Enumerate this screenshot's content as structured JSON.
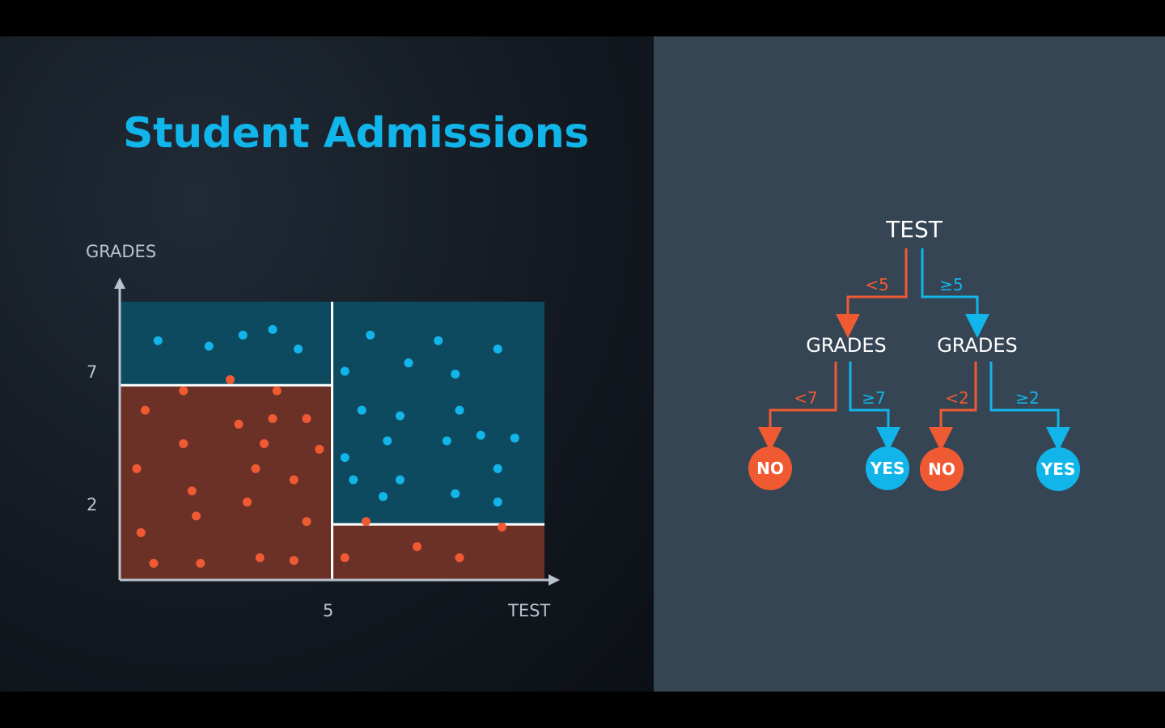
{
  "title": "Student Admissions",
  "colors": {
    "accent": "#12b5ea",
    "reject": "#f05a32",
    "accept": "#12b5ea",
    "accept_region": "#0e4a5f",
    "reject_region": "#6b3127",
    "panel": "#354554"
  },
  "chart_data": {
    "type": "scatter",
    "xlabel": "TEST",
    "ylabel": "GRADES",
    "xlim": [
      0,
      10
    ],
    "ylim": [
      0,
      10
    ],
    "x_ticks": [
      {
        "value": 5,
        "label": "5"
      }
    ],
    "y_ticks": [
      {
        "value": 7,
        "label": "7"
      },
      {
        "value": 2,
        "label": "2"
      }
    ],
    "regions": [
      {
        "label_class": "accept",
        "x": [
          0,
          5
        ],
        "y": [
          7,
          10
        ]
      },
      {
        "label_class": "reject",
        "x": [
          0,
          5
        ],
        "y": [
          0,
          7
        ]
      },
      {
        "label_class": "accept",
        "x": [
          5,
          10
        ],
        "y": [
          2,
          10
        ]
      },
      {
        "label_class": "reject",
        "x": [
          5,
          10
        ],
        "y": [
          0,
          2
        ]
      }
    ],
    "series": [
      {
        "class": "accepted",
        "points": [
          [
            0.9,
            8.6
          ],
          [
            2.1,
            8.4
          ],
          [
            2.9,
            8.8
          ],
          [
            3.6,
            9.0
          ],
          [
            4.2,
            8.3
          ],
          [
            5.9,
            8.8
          ],
          [
            7.5,
            8.6
          ],
          [
            8.9,
            8.3
          ],
          [
            5.3,
            7.5
          ],
          [
            6.8,
            7.8
          ],
          [
            7.9,
            7.4
          ],
          [
            5.7,
            6.1
          ],
          [
            6.6,
            5.9
          ],
          [
            8.0,
            6.1
          ],
          [
            6.3,
            5.0
          ],
          [
            7.7,
            5.0
          ],
          [
            8.5,
            5.2
          ],
          [
            9.3,
            5.1
          ],
          [
            5.3,
            4.4
          ],
          [
            5.5,
            3.6
          ],
          [
            6.6,
            3.6
          ],
          [
            8.9,
            4.0
          ],
          [
            6.2,
            3.0
          ],
          [
            7.9,
            3.1
          ],
          [
            8.9,
            2.8
          ]
        ]
      },
      {
        "class": "rejected",
        "points": [
          [
            0.6,
            6.1
          ],
          [
            1.5,
            6.8
          ],
          [
            2.6,
            7.2
          ],
          [
            3.7,
            6.8
          ],
          [
            2.8,
            5.6
          ],
          [
            3.6,
            5.8
          ],
          [
            4.4,
            5.8
          ],
          [
            1.5,
            4.9
          ],
          [
            3.4,
            4.9
          ],
          [
            4.7,
            4.7
          ],
          [
            0.4,
            4.0
          ],
          [
            3.2,
            4.0
          ],
          [
            4.1,
            3.6
          ],
          [
            1.7,
            3.2
          ],
          [
            3.0,
            2.8
          ],
          [
            1.8,
            2.3
          ],
          [
            4.4,
            2.1
          ],
          [
            0.5,
            1.7
          ],
          [
            0.8,
            0.6
          ],
          [
            1.9,
            0.6
          ],
          [
            3.3,
            0.8
          ],
          [
            4.1,
            0.7
          ],
          [
            5.8,
            2.1
          ],
          [
            9.0,
            1.9
          ],
          [
            7.0,
            1.2
          ],
          [
            8.0,
            0.8
          ],
          [
            5.3,
            0.8
          ]
        ]
      }
    ]
  },
  "tree": {
    "root": "TEST",
    "left_edge": "<5",
    "right_edge": "≥5",
    "left_node": {
      "label": "GRADES",
      "left_edge": "<7",
      "right_edge": "≥7",
      "left_leaf": "NO",
      "right_leaf": "YES"
    },
    "right_node": {
      "label": "GRADES",
      "left_edge": "<2",
      "right_edge": "≥2",
      "left_leaf": "NO",
      "right_leaf": "YES"
    }
  }
}
